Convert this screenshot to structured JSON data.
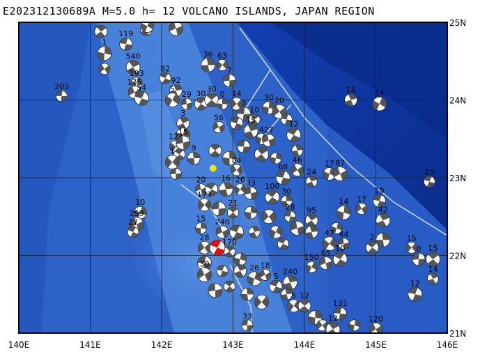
{
  "title": "E202312130689A M=5.0 h= 12 VOLCANO ISLANDS, JAPAN REGION",
  "axes": {
    "lon_labels": [
      "140E",
      "141E",
      "142E",
      "143E",
      "144E",
      "145E",
      "146E"
    ],
    "lat_labels": [
      "25N",
      "24N",
      "23N",
      "22N",
      "21N"
    ],
    "lon_range": [
      140,
      146
    ],
    "lat_range": [
      21,
      25
    ]
  },
  "colors": {
    "ocean_deep": "#0f3aa5",
    "ocean_mid": "#2a62cc",
    "ocean_shallow": "#4d86dd",
    "ridge": "#6a9ce8",
    "grid": "#1a1a1a",
    "plate_boundary": "#c8d4f0",
    "main_event": "#e01010",
    "epicenter": "#f2e600",
    "mechanism_dark": "#555555",
    "mechanism_light": "#ffffff"
  },
  "main_event": {
    "lon": 142.78,
    "lat": 22.1
  },
  "epicenter": {
    "lon": 142.72,
    "lat": 23.12
  },
  "events": [
    {
      "lon": 140.6,
      "lat": 24.05,
      "depth": "203"
    },
    {
      "lon": 141.15,
      "lat": 24.88,
      "depth": ""
    },
    {
      "lon": 141.2,
      "lat": 24.6,
      "depth": "1"
    },
    {
      "lon": 141.2,
      "lat": 24.4,
      "depth": ""
    },
    {
      "lon": 141.5,
      "lat": 24.72,
      "depth": "119"
    },
    {
      "lon": 141.6,
      "lat": 24.42,
      "depth": "540"
    },
    {
      "lon": 141.65,
      "lat": 24.22,
      "depth": "193"
    },
    {
      "lon": 141.62,
      "lat": 24.1,
      "depth": "175"
    },
    {
      "lon": 141.72,
      "lat": 24.02,
      "depth": "54"
    },
    {
      "lon": 141.78,
      "lat": 24.9,
      "depth": "523"
    },
    {
      "lon": 141.8,
      "lat": 24.95,
      "depth": ""
    },
    {
      "lon": 142.2,
      "lat": 24.92,
      "depth": "189"
    },
    {
      "lon": 142.05,
      "lat": 24.28,
      "depth": "82"
    },
    {
      "lon": 142.2,
      "lat": 24.12,
      "depth": "92"
    },
    {
      "lon": 142.15,
      "lat": 24.0,
      "depth": "5"
    },
    {
      "lon": 142.35,
      "lat": 23.95,
      "depth": "29"
    },
    {
      "lon": 142.55,
      "lat": 23.95,
      "depth": "30"
    },
    {
      "lon": 142.65,
      "lat": 24.45,
      "depth": "36"
    },
    {
      "lon": 142.85,
      "lat": 24.45,
      "depth": "63"
    },
    {
      "lon": 142.95,
      "lat": 24.25,
      "depth": "7"
    },
    {
      "lon": 142.7,
      "lat": 24.0,
      "depth": "30"
    },
    {
      "lon": 142.85,
      "lat": 23.95,
      "depth": "0"
    },
    {
      "lon": 143.05,
      "lat": 23.95,
      "depth": "14"
    },
    {
      "lon": 143.15,
      "lat": 23.82,
      "depth": "3"
    },
    {
      "lon": 143.3,
      "lat": 23.75,
      "depth": "10"
    },
    {
      "lon": 143.5,
      "lat": 23.9,
      "depth": "30"
    },
    {
      "lon": 143.65,
      "lat": 23.85,
      "depth": "20"
    },
    {
      "lon": 143.75,
      "lat": 23.75,
      "depth": ""
    },
    {
      "lon": 142.3,
      "lat": 23.7,
      "depth": "3"
    },
    {
      "lon": 142.3,
      "lat": 23.55,
      "depth": ""
    },
    {
      "lon": 142.8,
      "lat": 23.65,
      "depth": "56"
    },
    {
      "lon": 143.05,
      "lat": 23.7,
      "depth": ""
    },
    {
      "lon": 143.25,
      "lat": 23.6,
      "depth": "15"
    },
    {
      "lon": 143.4,
      "lat": 23.5,
      "depth": "4"
    },
    {
      "lon": 143.5,
      "lat": 23.48,
      "depth": "27"
    },
    {
      "lon": 143.85,
      "lat": 23.55,
      "depth": "12"
    },
    {
      "lon": 143.9,
      "lat": 23.35,
      "depth": ""
    },
    {
      "lon": 142.2,
      "lat": 23.4,
      "depth": "124"
    },
    {
      "lon": 142.3,
      "lat": 23.45,
      "depth": "15"
    },
    {
      "lon": 142.25,
      "lat": 23.3,
      "depth": ""
    },
    {
      "lon": 142.45,
      "lat": 23.25,
      "depth": "9"
    },
    {
      "lon": 142.15,
      "lat": 23.2,
      "depth": "1"
    },
    {
      "lon": 142.2,
      "lat": 23.05,
      "depth": ""
    },
    {
      "lon": 142.75,
      "lat": 23.35,
      "depth": ""
    },
    {
      "lon": 142.95,
      "lat": 23.25,
      "depth": ""
    },
    {
      "lon": 143.05,
      "lat": 23.1,
      "depth": "84"
    },
    {
      "lon": 143.15,
      "lat": 23.4,
      "depth": ""
    },
    {
      "lon": 143.4,
      "lat": 23.3,
      "depth": ""
    },
    {
      "lon": 143.6,
      "lat": 23.25,
      "depth": ""
    },
    {
      "lon": 143.9,
      "lat": 23.1,
      "depth": "46"
    },
    {
      "lon": 143.7,
      "lat": 23.0,
      "depth": "68"
    },
    {
      "lon": 144.1,
      "lat": 22.95,
      "depth": "24"
    },
    {
      "lon": 144.35,
      "lat": 23.05,
      "depth": "17"
    },
    {
      "lon": 144.5,
      "lat": 23.05,
      "depth": "87"
    },
    {
      "lon": 145.75,
      "lat": 22.95,
      "depth": "15"
    },
    {
      "lon": 144.65,
      "lat": 24.0,
      "depth": "15"
    },
    {
      "lon": 145.05,
      "lat": 23.95,
      "depth": "14"
    },
    {
      "lon": 142.55,
      "lat": 22.85,
      "depth": "20"
    },
    {
      "lon": 142.7,
      "lat": 22.85,
      "depth": ""
    },
    {
      "lon": 142.9,
      "lat": 22.85,
      "depth": "16"
    },
    {
      "lon": 143.1,
      "lat": 22.85,
      "depth": "26"
    },
    {
      "lon": 143.25,
      "lat": 22.8,
      "depth": "33"
    },
    {
      "lon": 143.55,
      "lat": 22.75,
      "depth": "100"
    },
    {
      "lon": 143.75,
      "lat": 22.7,
      "depth": "30"
    },
    {
      "lon": 142.6,
      "lat": 22.65,
      "depth": "173"
    },
    {
      "lon": 142.8,
      "lat": 22.6,
      "depth": ""
    },
    {
      "lon": 143.0,
      "lat": 22.55,
      "depth": "21"
    },
    {
      "lon": 143.25,
      "lat": 22.55,
      "depth": ""
    },
    {
      "lon": 143.5,
      "lat": 22.5,
      "depth": ""
    },
    {
      "lon": 143.8,
      "lat": 22.5,
      "depth": "28"
    },
    {
      "lon": 144.1,
      "lat": 22.45,
      "depth": "95"
    },
    {
      "lon": 144.55,
      "lat": 22.55,
      "depth": "14"
    },
    {
      "lon": 144.8,
      "lat": 22.6,
      "depth": "17"
    },
    {
      "lon": 145.05,
      "lat": 22.7,
      "depth": "19"
    },
    {
      "lon": 145.1,
      "lat": 22.45,
      "depth": "42"
    },
    {
      "lon": 144.45,
      "lat": 22.35,
      "depth": ""
    },
    {
      "lon": 142.85,
      "lat": 22.3,
      "depth": "240"
    },
    {
      "lon": 143.05,
      "lat": 22.3,
      "depth": ""
    },
    {
      "lon": 143.3,
      "lat": 22.3,
      "depth": ""
    },
    {
      "lon": 143.6,
      "lat": 22.3,
      "depth": ""
    },
    {
      "lon": 143.9,
      "lat": 22.35,
      "depth": ""
    },
    {
      "lon": 143.7,
      "lat": 22.15,
      "depth": ""
    },
    {
      "lon": 144.1,
      "lat": 22.3,
      "depth": ""
    },
    {
      "lon": 144.35,
      "lat": 22.15,
      "depth": "47"
    },
    {
      "lon": 144.55,
      "lat": 22.15,
      "depth": "44"
    },
    {
      "lon": 144.95,
      "lat": 22.1,
      "depth": "2"
    },
    {
      "lon": 145.1,
      "lat": 22.2,
      "depth": ""
    },
    {
      "lon": 145.5,
      "lat": 22.1,
      "depth": "15"
    },
    {
      "lon": 145.6,
      "lat": 21.95,
      "depth": "0"
    },
    {
      "lon": 145.8,
      "lat": 21.95,
      "depth": "15"
    },
    {
      "lon": 142.55,
      "lat": 22.35,
      "depth": "15"
    },
    {
      "lon": 142.6,
      "lat": 22.1,
      "depth": "28"
    },
    {
      "lon": 142.6,
      "lat": 21.9,
      "depth": ""
    },
    {
      "lon": 142.95,
      "lat": 22.05,
      "depth": "170"
    },
    {
      "lon": 143.1,
      "lat": 21.95,
      "depth": ""
    },
    {
      "lon": 142.6,
      "lat": 21.75,
      "depth": "30"
    },
    {
      "lon": 142.85,
      "lat": 21.8,
      "depth": ""
    },
    {
      "lon": 143.1,
      "lat": 21.8,
      "depth": ""
    },
    {
      "lon": 143.3,
      "lat": 21.7,
      "depth": "26"
    },
    {
      "lon": 143.45,
      "lat": 21.75,
      "depth": "18"
    },
    {
      "lon": 143.6,
      "lat": 21.6,
      "depth": "5"
    },
    {
      "lon": 143.8,
      "lat": 21.65,
      "depth": "240"
    },
    {
      "lon": 144.1,
      "lat": 21.85,
      "depth": "150"
    },
    {
      "lon": 144.3,
      "lat": 21.9,
      "depth": "65"
    },
    {
      "lon": 144.5,
      "lat": 21.95,
      "depth": "10"
    },
    {
      "lon": 143.75,
      "lat": 21.5,
      "depth": ""
    },
    {
      "lon": 143.85,
      "lat": 21.35,
      "depth": "5"
    },
    {
      "lon": 142.75,
      "lat": 21.55,
      "depth": ""
    },
    {
      "lon": 142.95,
      "lat": 21.6,
      "depth": ""
    },
    {
      "lon": 143.2,
      "lat": 21.5,
      "depth": ""
    },
    {
      "lon": 143.4,
      "lat": 21.4,
      "depth": ""
    },
    {
      "lon": 143.2,
      "lat": 21.1,
      "depth": "33"
    },
    {
      "lon": 144.0,
      "lat": 21.35,
      "depth": "12"
    },
    {
      "lon": 144.15,
      "lat": 21.2,
      "depth": ""
    },
    {
      "lon": 144.25,
      "lat": 21.1,
      "depth": ""
    },
    {
      "lon": 144.5,
      "lat": 21.25,
      "depth": "131"
    },
    {
      "lon": 144.4,
      "lat": 21.05,
      "depth": "12"
    },
    {
      "lon": 144.7,
      "lat": 21.1,
      "depth": ""
    },
    {
      "lon": 145.0,
      "lat": 21.05,
      "depth": "120"
    },
    {
      "lon": 145.55,
      "lat": 21.5,
      "depth": "12"
    },
    {
      "lon": 145.8,
      "lat": 21.7,
      "depth": "14"
    },
    {
      "lon": 141.7,
      "lat": 22.55,
      "depth": "10"
    },
    {
      "lon": 141.65,
      "lat": 22.4,
      "depth": "259"
    },
    {
      "lon": 141.6,
      "lat": 22.3,
      "depth": "27"
    }
  ]
}
